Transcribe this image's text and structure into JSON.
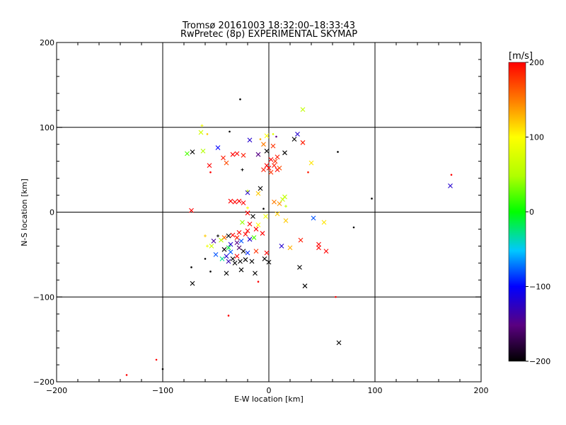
{
  "chart_data": {
    "type": "scatter",
    "title": "Tromsø 20161003 18:32:00–18:33:43",
    "subtitle": "RwPretec (8p) EXPERIMENTAL SKYMAP",
    "xlabel": "E-W location [km]",
    "ylabel": "N-S location [km]",
    "xlim": [
      -200,
      200
    ],
    "ylim": [
      -200,
      200
    ],
    "xticks": [
      "-200",
      "-100",
      "0",
      "100",
      "200"
    ],
    "yticks": [
      "-200",
      "-100",
      "0",
      "100",
      "200"
    ],
    "grid": true,
    "colorbar": {
      "label": "[m/s]",
      "range": [
        -200,
        200
      ],
      "ticks": [
        "200",
        "100",
        "0",
        "-100",
        "-200"
      ],
      "colormap": "black-purple-blue-cyan-green-yellow-orange-red"
    },
    "points": [
      {
        "x": -27,
        "y": 133,
        "v": -200,
        "m": "."
      },
      {
        "x": 32,
        "y": 121,
        "v": 60,
        "m": "x"
      },
      {
        "x": -63,
        "y": 102,
        "v": 90,
        "m": "+"
      },
      {
        "x": -64,
        "y": 94,
        "v": 70,
        "m": "x"
      },
      {
        "x": -58,
        "y": 92,
        "v": 120,
        "m": "."
      },
      {
        "x": 27,
        "y": 92,
        "v": -120,
        "m": "x"
      },
      {
        "x": 4,
        "y": 92,
        "v": 80,
        "m": "."
      },
      {
        "x": -2,
        "y": 90,
        "v": 100,
        "m": "x"
      },
      {
        "x": 7,
        "y": 89,
        "v": -150,
        "m": "."
      },
      {
        "x": -37,
        "y": 95,
        "v": -200,
        "m": "."
      },
      {
        "x": -18,
        "y": 85,
        "v": -120,
        "m": "x"
      },
      {
        "x": -8,
        "y": 86,
        "v": 130,
        "m": "."
      },
      {
        "x": 32,
        "y": 82,
        "v": 190,
        "m": "x"
      },
      {
        "x": 24,
        "y": 86,
        "v": -200,
        "m": "x"
      },
      {
        "x": -48,
        "y": 76,
        "v": -100,
        "m": "x"
      },
      {
        "x": -72,
        "y": 71,
        "v": -200,
        "m": "x"
      },
      {
        "x": -77,
        "y": 69,
        "v": 20,
        "m": "x"
      },
      {
        "x": -62,
        "y": 72,
        "v": 50,
        "m": "x"
      },
      {
        "x": -5,
        "y": 80,
        "v": 150,
        "m": "x"
      },
      {
        "x": 4,
        "y": 78,
        "v": 180,
        "m": "x"
      },
      {
        "x": -2,
        "y": 72,
        "v": -200,
        "m": "x"
      },
      {
        "x": -30,
        "y": 69,
        "v": 200,
        "m": "x"
      },
      {
        "x": -34,
        "y": 68,
        "v": 200,
        "m": "x"
      },
      {
        "x": -24,
        "y": 67,
        "v": 190,
        "m": "x"
      },
      {
        "x": 15,
        "y": 70,
        "v": -200,
        "m": "x"
      },
      {
        "x": 65,
        "y": 71,
        "v": -200,
        "m": "."
      },
      {
        "x": 8,
        "y": 65,
        "v": 190,
        "m": "x"
      },
      {
        "x": -10,
        "y": 68,
        "v": -150,
        "m": "x"
      },
      {
        "x": 2,
        "y": 62,
        "v": 200,
        "m": "x"
      },
      {
        "x": 6,
        "y": 60,
        "v": 180,
        "m": "x"
      },
      {
        "x": -43,
        "y": 64,
        "v": 190,
        "m": "x"
      },
      {
        "x": -40,
        "y": 58,
        "v": 170,
        "m": "x"
      },
      {
        "x": -2,
        "y": 55,
        "v": 200,
        "m": "x"
      },
      {
        "x": 5,
        "y": 55,
        "v": 190,
        "m": "x"
      },
      {
        "x": 0,
        "y": 52,
        "v": 200,
        "m": "x"
      },
      {
        "x": -5,
        "y": 50,
        "v": 190,
        "m": "x"
      },
      {
        "x": 8,
        "y": 50,
        "v": 200,
        "m": "x"
      },
      {
        "x": 10,
        "y": 52,
        "v": 170,
        "m": "x"
      },
      {
        "x": 2,
        "y": 47,
        "v": 180,
        "m": "x"
      },
      {
        "x": 40,
        "y": 58,
        "v": 110,
        "m": "x"
      },
      {
        "x": 37,
        "y": 47,
        "v": 190,
        "m": "."
      },
      {
        "x": -56,
        "y": 55,
        "v": 200,
        "m": "x"
      },
      {
        "x": -25,
        "y": 50,
        "v": -200,
        "m": "+"
      },
      {
        "x": -55,
        "y": 47,
        "v": 200,
        "m": "."
      },
      {
        "x": 171,
        "y": 31,
        "v": -120,
        "m": "x"
      },
      {
        "x": 172,
        "y": 44,
        "v": 200,
        "m": "."
      },
      {
        "x": 97,
        "y": 16,
        "v": -200,
        "m": "."
      },
      {
        "x": -8,
        "y": 28,
        "v": -200,
        "m": "x"
      },
      {
        "x": -10,
        "y": 22,
        "v": 120,
        "m": "x"
      },
      {
        "x": -20,
        "y": 23,
        "v": -120,
        "m": "x"
      },
      {
        "x": -20,
        "y": 25,
        "v": 60,
        "m": "+"
      },
      {
        "x": 15,
        "y": 18,
        "v": 60,
        "m": "x"
      },
      {
        "x": 13,
        "y": 15,
        "v": 60,
        "m": "x"
      },
      {
        "x": -36,
        "y": 13,
        "v": 200,
        "m": "x"
      },
      {
        "x": -32,
        "y": 12,
        "v": 200,
        "m": "x"
      },
      {
        "x": -28,
        "y": 13,
        "v": 200,
        "m": "x"
      },
      {
        "x": -24,
        "y": 11,
        "v": 200,
        "m": "x"
      },
      {
        "x": 5,
        "y": 12,
        "v": 150,
        "m": "x"
      },
      {
        "x": 10,
        "y": 10,
        "v": 140,
        "m": "x"
      },
      {
        "x": 16,
        "y": 7,
        "v": 60,
        "m": "+"
      },
      {
        "x": -20,
        "y": 5,
        "v": 100,
        "m": "+"
      },
      {
        "x": -5,
        "y": 4,
        "v": -200,
        "m": "."
      },
      {
        "x": -3,
        "y": -5,
        "v": 90,
        "m": "x"
      },
      {
        "x": 8,
        "y": -2,
        "v": 120,
        "m": "x"
      },
      {
        "x": -73,
        "y": 2,
        "v": 200,
        "m": "x"
      },
      {
        "x": -20,
        "y": -1,
        "v": 200,
        "m": "x"
      },
      {
        "x": -15,
        "y": -5,
        "v": -200,
        "m": "x"
      },
      {
        "x": 52,
        "y": -12,
        "v": 110,
        "m": "x"
      },
      {
        "x": 80,
        "y": -18,
        "v": -200,
        "m": "."
      },
      {
        "x": 42,
        "y": -7,
        "v": -80,
        "m": "x"
      },
      {
        "x": 16,
        "y": -10,
        "v": 120,
        "m": "x"
      },
      {
        "x": -25,
        "y": -12,
        "v": 40,
        "m": "x"
      },
      {
        "x": -18,
        "y": -14,
        "v": 200,
        "m": "x"
      },
      {
        "x": -10,
        "y": -15,
        "v": 100,
        "m": "x"
      },
      {
        "x": -12,
        "y": -20,
        "v": 200,
        "m": "x"
      },
      {
        "x": -6,
        "y": -25,
        "v": 200,
        "m": "x"
      },
      {
        "x": -20,
        "y": -22,
        "v": 200,
        "m": "x"
      },
      {
        "x": -22,
        "y": -26,
        "v": 200,
        "m": "x"
      },
      {
        "x": -28,
        "y": -24,
        "v": 200,
        "m": "x"
      },
      {
        "x": -30,
        "y": -30,
        "v": 190,
        "m": "x"
      },
      {
        "x": -34,
        "y": -27,
        "v": 200,
        "m": "x"
      },
      {
        "x": -38,
        "y": -28,
        "v": -200,
        "m": "x"
      },
      {
        "x": -42,
        "y": -30,
        "v": 160,
        "m": "x"
      },
      {
        "x": -45,
        "y": -33,
        "v": 50,
        "m": "x"
      },
      {
        "x": -48,
        "y": -28,
        "v": -200,
        "m": "+"
      },
      {
        "x": -18,
        "y": -32,
        "v": -120,
        "m": "x"
      },
      {
        "x": -14,
        "y": -30,
        "v": 20,
        "m": "x"
      },
      {
        "x": -26,
        "y": -34,
        "v": -80,
        "m": "x"
      },
      {
        "x": -30,
        "y": -36,
        "v": -150,
        "m": "x"
      },
      {
        "x": -36,
        "y": -38,
        "v": -120,
        "m": "x"
      },
      {
        "x": -38,
        "y": -42,
        "v": -10,
        "m": "x"
      },
      {
        "x": -42,
        "y": -44,
        "v": -200,
        "m": "x"
      },
      {
        "x": -36,
        "y": -47,
        "v": -80,
        "m": "x"
      },
      {
        "x": -28,
        "y": -42,
        "v": -160,
        "m": "x"
      },
      {
        "x": -24,
        "y": -46,
        "v": -200,
        "m": "x"
      },
      {
        "x": -20,
        "y": -48,
        "v": -90,
        "m": "x"
      },
      {
        "x": -40,
        "y": -52,
        "v": -120,
        "m": "x"
      },
      {
        "x": -44,
        "y": -55,
        "v": -30,
        "m": "x"
      },
      {
        "x": -38,
        "y": -58,
        "v": -130,
        "m": "x"
      },
      {
        "x": -34,
        "y": -55,
        "v": -200,
        "m": "x"
      },
      {
        "x": -30,
        "y": -52,
        "v": 200,
        "m": "x"
      },
      {
        "x": -27,
        "y": -58,
        "v": -200,
        "m": "x"
      },
      {
        "x": -22,
        "y": -56,
        "v": -200,
        "m": "x"
      },
      {
        "x": -16,
        "y": -58,
        "v": -200,
        "m": "x"
      },
      {
        "x": -50,
        "y": -50,
        "v": -80,
        "m": "x"
      },
      {
        "x": -54,
        "y": -40,
        "v": 70,
        "m": "x"
      },
      {
        "x": -52,
        "y": -34,
        "v": -140,
        "m": "x"
      },
      {
        "x": -60,
        "y": -28,
        "v": 120,
        "m": "+"
      },
      {
        "x": -58,
        "y": -40,
        "v": 90,
        "m": "+"
      },
      {
        "x": 12,
        "y": -40,
        "v": -120,
        "m": "x"
      },
      {
        "x": 20,
        "y": -42,
        "v": 130,
        "m": "x"
      },
      {
        "x": 30,
        "y": -33,
        "v": 190,
        "m": "x"
      },
      {
        "x": 47,
        "y": -38,
        "v": 200,
        "m": "x"
      },
      {
        "x": 47,
        "y": -42,
        "v": 200,
        "m": "x"
      },
      {
        "x": 54,
        "y": -46,
        "v": 200,
        "m": "x"
      },
      {
        "x": -12,
        "y": -46,
        "v": 180,
        "m": "x"
      },
      {
        "x": -2,
        "y": -48,
        "v": 200,
        "m": "x"
      },
      {
        "x": -4,
        "y": -55,
        "v": -200,
        "m": "x"
      },
      {
        "x": 0,
        "y": -59,
        "v": -200,
        "m": "x"
      },
      {
        "x": -73,
        "y": -65,
        "v": -200,
        "m": "."
      },
      {
        "x": -60,
        "y": -55,
        "v": -200,
        "m": "."
      },
      {
        "x": -55,
        "y": -70,
        "v": -200,
        "m": "."
      },
      {
        "x": -40,
        "y": -72,
        "v": -200,
        "m": "x"
      },
      {
        "x": -32,
        "y": -60,
        "v": -200,
        "m": "x"
      },
      {
        "x": -26,
        "y": -68,
        "v": -200,
        "m": "x"
      },
      {
        "x": -13,
        "y": -72,
        "v": -200,
        "m": "x"
      },
      {
        "x": -10,
        "y": -82,
        "v": 200,
        "m": "."
      },
      {
        "x": 29,
        "y": -65,
        "v": -200,
        "m": "x"
      },
      {
        "x": -72,
        "y": -84,
        "v": -200,
        "m": "x"
      },
      {
        "x": 34,
        "y": -87,
        "v": -200,
        "m": "x"
      },
      {
        "x": 63,
        "y": -100,
        "v": 200,
        "m": "."
      },
      {
        "x": -38,
        "y": -122,
        "v": 200,
        "m": "."
      },
      {
        "x": 66,
        "y": -154,
        "v": -200,
        "m": "x"
      },
      {
        "x": -106,
        "y": -174,
        "v": 200,
        "m": "."
      },
      {
        "x": -100,
        "y": -185,
        "v": -200,
        "m": "."
      },
      {
        "x": -134,
        "y": -192,
        "v": 200,
        "m": "."
      }
    ]
  }
}
